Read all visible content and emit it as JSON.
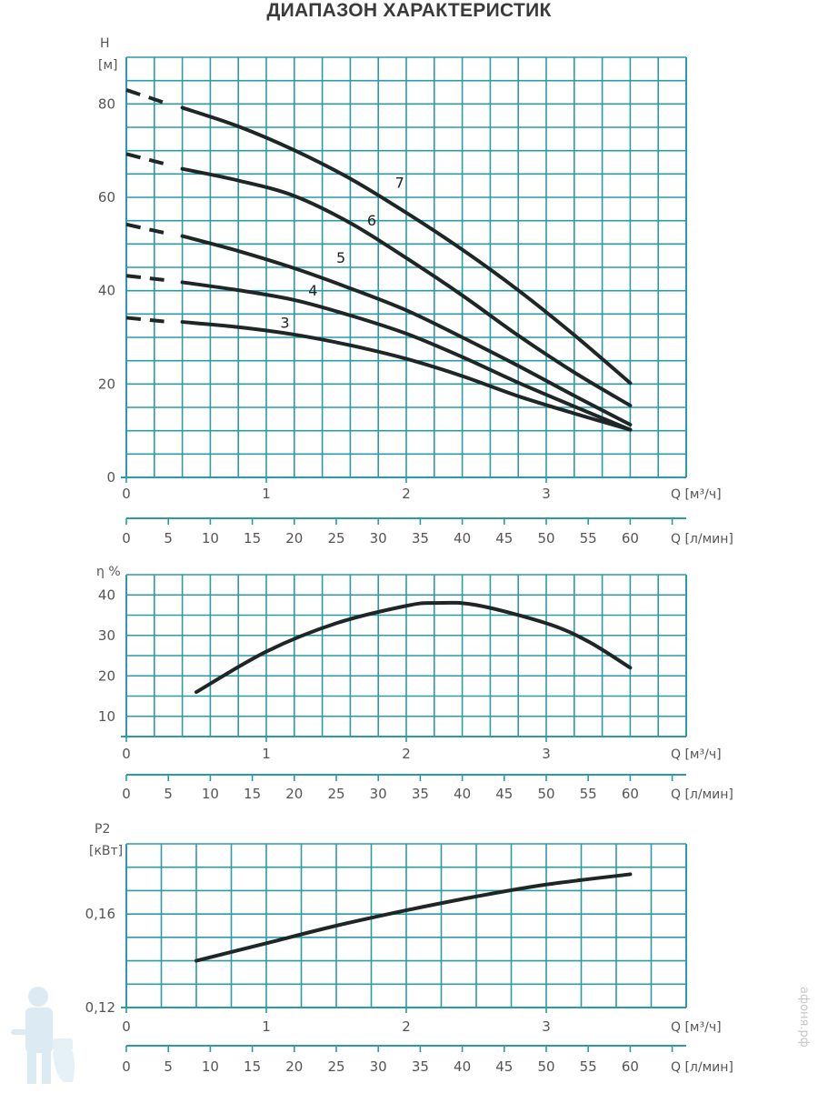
{
  "title": "ДИАПАЗОН ХАРАКТЕРИСТИК",
  "watermark": "афоня.рф",
  "colors": {
    "grid": "#2b9ba7",
    "curve": "#1e2626",
    "text": "#555555"
  },
  "chart_data": [
    {
      "type": "line",
      "ylabel": "H",
      "yunit": "[м]",
      "xlabel": "Q [м³/ч]",
      "xlabel2": "Q [л/мин]",
      "xlim": [
        0,
        4.0
      ],
      "ylim": [
        0,
        90
      ],
      "grid": true,
      "x_ticks": [
        "0",
        "1",
        "2",
        "3"
      ],
      "x2_ticks": [
        "0",
        "5",
        "10",
        "15",
        "20",
        "25",
        "30",
        "35",
        "40",
        "45",
        "50",
        "55",
        "60"
      ],
      "y_ticks": [
        "0",
        "20",
        "40",
        "60",
        "80"
      ],
      "series": [
        {
          "name": "7",
          "label_at": [
            1.92,
            62
          ],
          "dashed": {
            "x": [
              0,
              0.27
            ],
            "y": [
              83,
              80.3
            ]
          },
          "x": [
            0.4,
            0.8,
            1.2,
            1.6,
            2.0,
            2.4,
            2.8,
            3.2,
            3.6
          ],
          "y": [
            79.2,
            75.2,
            70.1,
            64,
            56.7,
            48.8,
            40.1,
            30.5,
            20.2
          ]
        },
        {
          "name": "6",
          "label_at": [
            1.72,
            54
          ],
          "dashed": {
            "x": [
              0,
              0.27
            ],
            "y": [
              69.3,
              67.2
            ]
          },
          "x": [
            0.4,
            0.8,
            1.2,
            1.6,
            2.0,
            2.4,
            2.8,
            3.2,
            3.6
          ],
          "y": [
            66.1,
            63.6,
            60.3,
            54.5,
            47,
            39,
            30.4,
            22.5,
            15.4
          ]
        },
        {
          "name": "5",
          "label_at": [
            1.5,
            46
          ],
          "dashed": {
            "x": [
              0,
              0.27
            ],
            "y": [
              54.2,
              52.4
            ]
          },
          "x": [
            0.4,
            0.8,
            1.2,
            1.6,
            2.0,
            2.4,
            2.8,
            3.2,
            3.6
          ],
          "y": [
            51.7,
            48.5,
            44.8,
            40.5,
            35.8,
            30,
            23.9,
            17.5,
            11.3
          ]
        },
        {
          "name": "4",
          "label_at": [
            1.3,
            39
          ],
          "dashed": {
            "x": [
              0,
              0.27
            ],
            "y": [
              43.2,
              42.3
            ]
          },
          "x": [
            0.4,
            0.8,
            1.2,
            1.6,
            2.0,
            2.4,
            2.8,
            3.2,
            3.6
          ],
          "y": [
            41.8,
            40.1,
            38,
            34.7,
            30.8,
            25.8,
            20.3,
            15.2,
            10.2
          ]
        },
        {
          "name": "3",
          "label_at": [
            1.1,
            32
          ],
          "dashed": {
            "x": [
              0,
              0.27
            ],
            "y": [
              34.2,
              33.4
            ]
          },
          "x": [
            0.4,
            0.8,
            1.2,
            1.6,
            2.0,
            2.4,
            2.8,
            3.2,
            3.6
          ],
          "y": [
            33.3,
            32.2,
            30.6,
            28.3,
            25.4,
            21.7,
            17.4,
            13.7,
            10.2
          ]
        }
      ]
    },
    {
      "type": "line",
      "ylabel": "η %",
      "xlabel": "Q [м³/ч]",
      "xlabel2": "Q [л/мин]",
      "xlim": [
        0,
        4.0
      ],
      "ylim": [
        5,
        45
      ],
      "grid": true,
      "x_ticks": [
        "0",
        "1",
        "2",
        "3"
      ],
      "x2_ticks": [
        "0",
        "5",
        "10",
        "15",
        "20",
        "25",
        "30",
        "35",
        "40",
        "45",
        "50",
        "55",
        "60"
      ],
      "y_ticks": [
        "10",
        "20",
        "30",
        "40"
      ],
      "series": [
        {
          "x": [
            0.5,
            1.0,
            1.5,
            2.0,
            2.2,
            2.5,
            3.0,
            3.3,
            3.6
          ],
          "y": [
            16,
            26,
            33,
            37.3,
            38,
            37.5,
            33,
            28.5,
            22
          ]
        }
      ]
    },
    {
      "type": "line",
      "ylabel": "P2",
      "yunit": "[кВт]",
      "xlabel": "Q [м³/ч]",
      "xlabel2": "Q [л/мин]",
      "xlim": [
        0,
        4.0
      ],
      "ylim": [
        0.12,
        0.19
      ],
      "grid": true,
      "x_ticks": [
        "0",
        "1",
        "2",
        "3"
      ],
      "x2_ticks": [
        "0",
        "5",
        "10",
        "15",
        "20",
        "25",
        "30",
        "35",
        "40",
        "45",
        "50",
        "55",
        "60"
      ],
      "y_ticks": [
        "0,12",
        "0,16"
      ],
      "series": [
        {
          "x": [
            0.5,
            1.0,
            1.5,
            2.0,
            2.5,
            3.0,
            3.6
          ],
          "y": [
            0.14,
            0.1475,
            0.155,
            0.1616,
            0.1675,
            0.1726,
            0.177
          ]
        }
      ]
    }
  ]
}
